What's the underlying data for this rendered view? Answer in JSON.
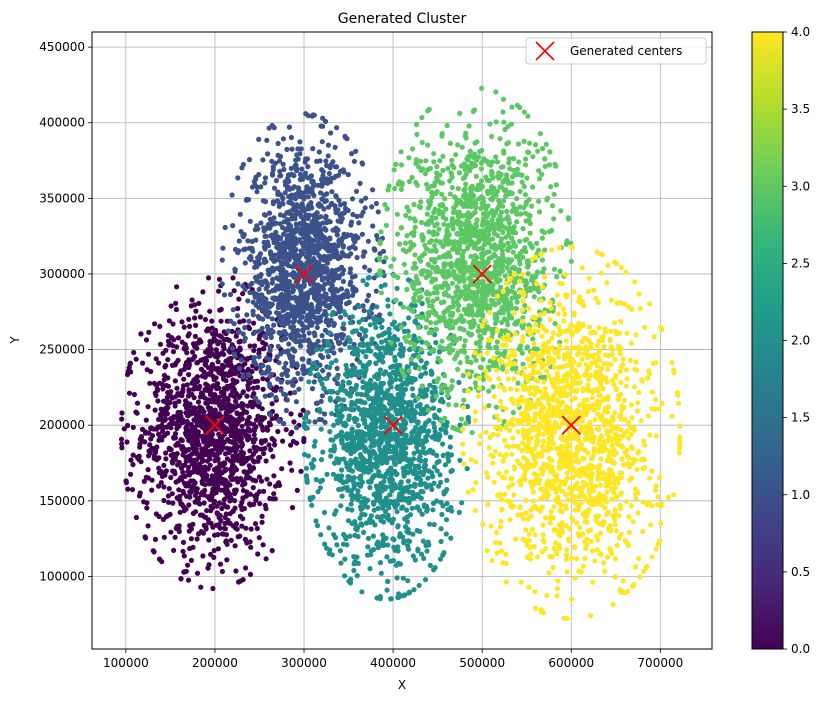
{
  "chart_data": {
    "type": "scatter",
    "title": "Generated Cluster",
    "xlabel": "X",
    "ylabel": "Y",
    "xlim": [
      62000,
      758000
    ],
    "ylim": [
      52000,
      460000
    ],
    "x_ticks": [
      100000,
      200000,
      300000,
      400000,
      500000,
      600000,
      700000
    ],
    "y_ticks": [
      100000,
      150000,
      200000,
      250000,
      300000,
      350000,
      400000,
      450000
    ],
    "grid": true,
    "legend": {
      "position": "top-right",
      "entries": [
        "Generated centers"
      ]
    },
    "clusters": [
      {
        "label_value": 0,
        "center": [
          200000,
          200000
        ],
        "x_range": [
          95000,
          300000
        ],
        "y_range": [
          92000,
          300000
        ],
        "color": "#440154"
      },
      {
        "label_value": 1,
        "center": [
          300000,
          300000
        ],
        "x_range": [
          208000,
          390000
        ],
        "y_range": [
          198000,
          406000
        ],
        "color": "#3b528b"
      },
      {
        "label_value": 2,
        "center": [
          400000,
          200000
        ],
        "x_range": [
          300000,
          485000
        ],
        "y_range": [
          85000,
          300000
        ],
        "color": "#21908d"
      },
      {
        "label_value": 3,
        "center": [
          500000,
          300000
        ],
        "x_range": [
          385000,
          600000
        ],
        "y_range": [
          195000,
          423000
        ],
        "color": "#5dc863"
      },
      {
        "label_value": 4,
        "center": [
          600000,
          200000
        ],
        "x_range": [
          478000,
          722000
        ],
        "y_range": [
          72000,
          318000
        ],
        "color": "#fde725"
      }
    ],
    "centers": [
      {
        "x": 200000,
        "y": 200000
      },
      {
        "x": 300000,
        "y": 300000
      },
      {
        "x": 400000,
        "y": 200000
      },
      {
        "x": 500000,
        "y": 300000
      },
      {
        "x": 600000,
        "y": 200000
      }
    ],
    "center_marker_color": "#ff0000",
    "colorbar": {
      "colormap": "viridis",
      "min": 0.0,
      "max": 4.0,
      "ticks": [
        "0.0",
        "0.5",
        "1.0",
        "1.5",
        "2.0",
        "2.5",
        "3.0",
        "3.5",
        "4.0"
      ],
      "stops": [
        "#440154",
        "#482878",
        "#3e4989",
        "#31688e",
        "#26828e",
        "#1f9e89",
        "#35b779",
        "#6ece58",
        "#b5de2b",
        "#fde725"
      ]
    }
  }
}
